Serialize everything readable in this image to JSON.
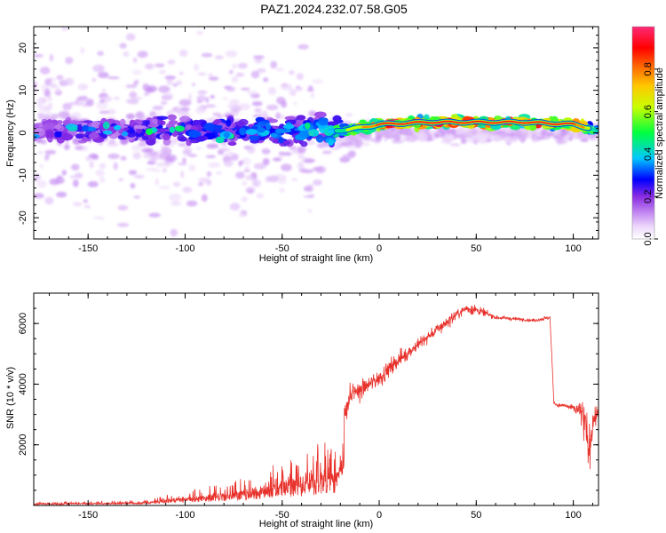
{
  "title": "PAZ1.2024.232.07.58.G05",
  "chart_data": [
    {
      "type": "heatmap",
      "xlabel": "Height of straight line (km)",
      "ylabel": "Frequency (Hz)",
      "xlim": [
        -178,
        113
      ],
      "ylim": [
        -25,
        25
      ],
      "xticks": [
        -150,
        -100,
        -50,
        0,
        50,
        100
      ],
      "yticks": [
        -20,
        -10,
        0,
        10,
        20
      ],
      "grid": false,
      "colorbar": {
        "label": "Normalized spectral amplitude",
        "range": [
          0,
          1
        ],
        "ticks": [
          "0.0",
          "0.2",
          "0.4",
          "0.6",
          "0.8"
        ],
        "colormap": [
          "#ffffff",
          "#d8b0f8",
          "#8a2be2",
          "#0000ff",
          "#00e5ff",
          "#00ff00",
          "#ffff00",
          "#ff8000",
          "#ff0000",
          "#ff2080"
        ]
      },
      "ridge": {
        "description_points_x": [
          -175,
          -150,
          -125,
          -100,
          -75,
          -50,
          -25,
          -15,
          0,
          25,
          50,
          75,
          100,
          110
        ],
        "center_frequency": [
          0.5,
          0.5,
          0.5,
          0.5,
          0.5,
          0.5,
          0.5,
          0.8,
          2.0,
          2.5,
          2.5,
          2.5,
          2.0,
          1.0
        ],
        "peak_amplitude": [
          0.2,
          0.25,
          0.25,
          0.3,
          0.3,
          0.35,
          0.4,
          0.6,
          0.9,
          0.95,
          0.95,
          0.9,
          0.9,
          0.6
        ]
      }
    },
    {
      "type": "line",
      "xlabel": "Height of straight line (km)",
      "ylabel": "SNR (10 * v/v)",
      "xlim": [
        -178,
        113
      ],
      "ylim": [
        0,
        7000
      ],
      "xticks": [
        -150,
        -100,
        -50,
        0,
        50,
        100
      ],
      "yticks": [
        2000,
        4000,
        6000
      ],
      "grid": false,
      "series": [
        {
          "color": "#e8302a",
          "x": [
            -178,
            -150,
            -120,
            -110,
            -90,
            -70,
            -60,
            -50,
            -40,
            -30,
            -22,
            -18,
            -15,
            -10,
            0,
            10,
            20,
            30,
            40,
            45,
            50,
            60,
            70,
            80,
            88,
            90,
            92,
            95,
            100,
            104,
            106,
            108,
            110,
            113
          ],
          "mean": [
            60,
            80,
            120,
            200,
            300,
            400,
            500,
            650,
            750,
            900,
            1000,
            3000,
            3600,
            3800,
            4200,
            4800,
            5300,
            5800,
            6300,
            6500,
            6450,
            6200,
            6150,
            6100,
            6200,
            3400,
            3300,
            3300,
            3200,
            3100,
            2600,
            1800,
            2800,
            3100
          ],
          "noise": [
            40,
            50,
            60,
            120,
            220,
            350,
            450,
            550,
            650,
            800,
            700,
            500,
            600,
            500,
            450,
            400,
            350,
            300,
            280,
            300,
            250,
            100,
            80,
            80,
            100,
            80,
            80,
            100,
            200,
            600,
            1200,
            1400,
            900,
            200
          ]
        }
      ]
    }
  ]
}
